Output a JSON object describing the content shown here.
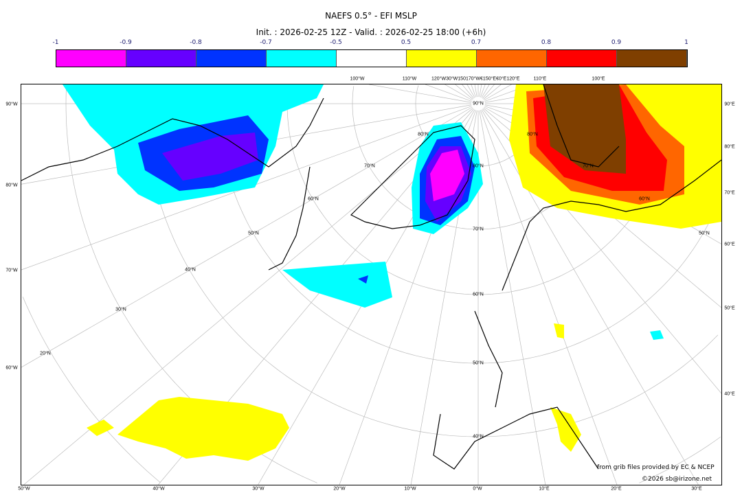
{
  "title": "NAEFS 0.5° - EFI MSLP",
  "subtitle": "Init. : 2026-02-25 12Z - Valid. : 2026-02-25 18:00 (+6h)",
  "colorbar": {
    "ticks": [
      "-1",
      "-0.9",
      "-0.8",
      "-0.7",
      "-0.5",
      "0.5",
      "0.7",
      "0.8",
      "0.9",
      "1"
    ],
    "colors": [
      "#ff00ff",
      "#6600ff",
      "#0033ff",
      "#00ffff",
      "#ffffff",
      "#ffff00",
      "#ff6600",
      "#ff0000",
      "#7f3f00"
    ]
  },
  "map": {
    "left_labels": [
      "90°W",
      "80°W",
      "70°W",
      "60°W"
    ],
    "right_labels": [
      "90°E",
      "80°E",
      "70°E",
      "60°E",
      "50°E",
      "40°E"
    ],
    "bottom_labels": [
      "50°W",
      "40°W",
      "30°W",
      "20°W",
      "10°W",
      "0°W",
      "10°E",
      "20°E",
      "30°E"
    ],
    "top_labels": [
      "100°W",
      "110°W",
      "120°W30°W150170°W€150°E€0°E120°E",
      "110°E",
      "100°E"
    ],
    "lat_labels": [
      "90°N",
      "80°N",
      "70°N",
      "60°N",
      "50°N",
      "40°N",
      "80°N",
      "70°N",
      "60°N",
      "50°N",
      "40°N",
      "30°N",
      "20°N",
      "80°N",
      "70°N",
      "60°N",
      "50°N"
    ]
  },
  "credits": {
    "source": "from grib files provided by EC & NCEP",
    "copyright": "©2026 sb@irizone.net"
  }
}
